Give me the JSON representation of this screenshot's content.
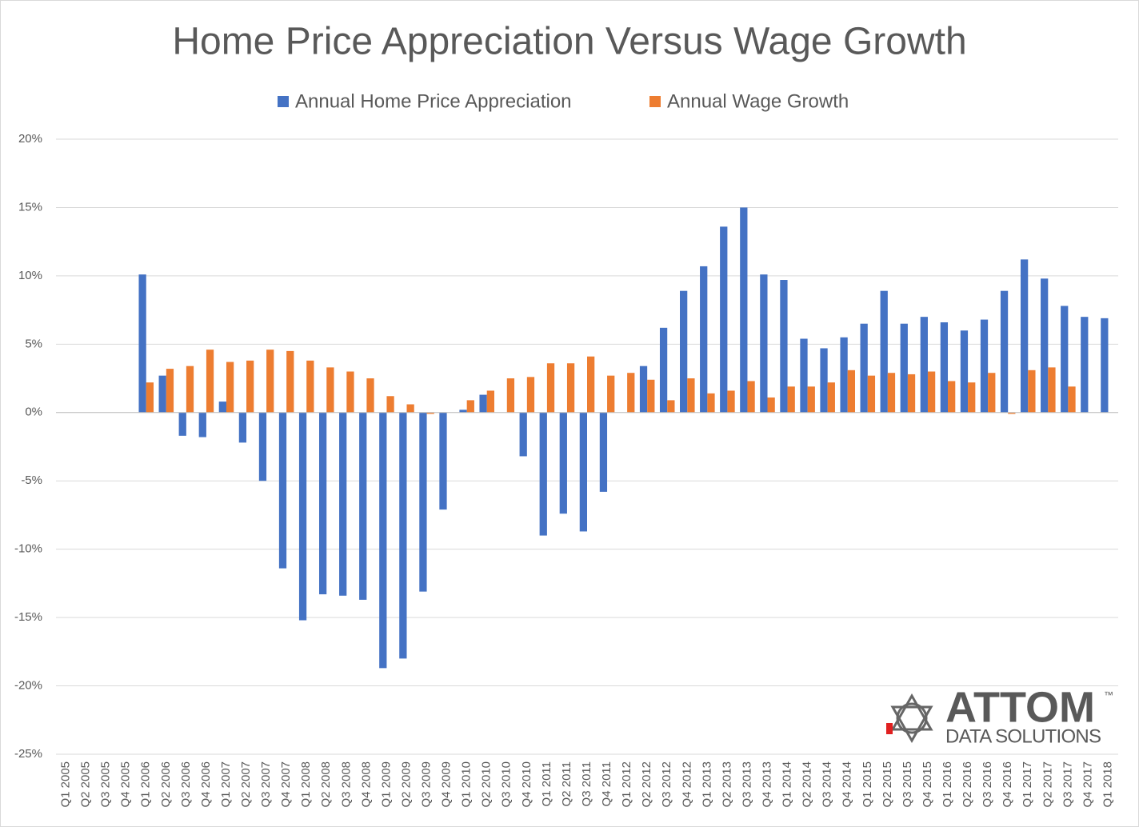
{
  "chart_data": {
    "type": "bar",
    "title": "Home Price Appreciation Versus Wage Growth",
    "categories": [
      "Q1 2005",
      "Q2 2005",
      "Q3 2005",
      "Q4 2005",
      "Q1 2006",
      "Q2 2006",
      "Q3 2006",
      "Q4 2006",
      "Q1 2007",
      "Q2 2007",
      "Q3 2007",
      "Q4 2007",
      "Q1 2008",
      "Q2 2008",
      "Q3 2008",
      "Q4 2008",
      "Q1 2009",
      "Q2 2009",
      "Q3 2009",
      "Q4 2009",
      "Q1 2010",
      "Q2 2010",
      "Q3 2010",
      "Q4 2010",
      "Q1 2011",
      "Q2 2011",
      "Q3 2011",
      "Q4 2011",
      "Q1 2012",
      "Q2 2012",
      "Q3 2012",
      "Q4 2012",
      "Q1 2013",
      "Q2 2013",
      "Q3 2013",
      "Q4 2013",
      "Q1 2014",
      "Q2 2014",
      "Q3 2014",
      "Q4 2014",
      "Q1 2015",
      "Q2 2015",
      "Q3 2015",
      "Q4 2015",
      "Q1 2016",
      "Q2 2016",
      "Q3 2016",
      "Q4 2016",
      "Q1 2017",
      "Q2 2017",
      "Q3 2017",
      "Q4 2017",
      "Q1 2018"
    ],
    "series": [
      {
        "name": "Annual Home Price Appreciation",
        "color": "#4472c4",
        "values": [
          null,
          null,
          null,
          null,
          10.1,
          2.7,
          -1.7,
          -1.8,
          0.8,
          -2.2,
          -5.0,
          -11.4,
          -15.2,
          -13.3,
          -13.4,
          -13.7,
          -18.7,
          -18.0,
          -13.1,
          -7.1,
          0.2,
          1.3,
          null,
          -3.2,
          -9.0,
          -7.4,
          -8.7,
          -5.8,
          null,
          3.4,
          6.2,
          8.9,
          10.7,
          13.6,
          15.0,
          10.1,
          9.7,
          5.4,
          4.7,
          5.5,
          6.5,
          8.9,
          6.5,
          7.0,
          6.6,
          6.0,
          6.8,
          8.9,
          11.2,
          9.8,
          7.8,
          7.0,
          6.9
        ]
      },
      {
        "name": "Annual Wage Growth",
        "color": "#ed7d31",
        "values": [
          null,
          null,
          null,
          null,
          2.2,
          3.2,
          3.4,
          4.6,
          3.7,
          3.8,
          4.6,
          4.5,
          3.8,
          3.3,
          3.0,
          2.5,
          1.2,
          0.6,
          -0.1,
          null,
          0.9,
          1.6,
          2.5,
          2.6,
          3.6,
          3.6,
          4.1,
          2.7,
          2.9,
          2.4,
          0.9,
          2.5,
          1.4,
          1.6,
          2.3,
          1.1,
          1.9,
          1.9,
          2.2,
          3.1,
          2.7,
          2.9,
          2.8,
          3.0,
          2.3,
          2.2,
          2.9,
          -0.1,
          3.1,
          3.3,
          1.9,
          null,
          null
        ]
      }
    ],
    "ylim": [
      -25,
      20
    ],
    "yticks": [
      {
        "value": -25,
        "label": "-25%"
      },
      {
        "value": -20,
        "label": "-20%"
      },
      {
        "value": -15,
        "label": "-15%"
      },
      {
        "value": -10,
        "label": "-10%"
      },
      {
        "value": -5,
        "label": "-5%"
      },
      {
        "value": 0,
        "label": "0%"
      },
      {
        "value": 5,
        "label": "5%"
      },
      {
        "value": 10,
        "label": "10%"
      },
      {
        "value": 15,
        "label": "15%"
      },
      {
        "value": 20,
        "label": "20%"
      }
    ],
    "grid": true,
    "legend": "top"
  },
  "logo": {
    "name": "ATTOM",
    "mark": "™",
    "tagline": "DATA SOLUTIONS"
  }
}
